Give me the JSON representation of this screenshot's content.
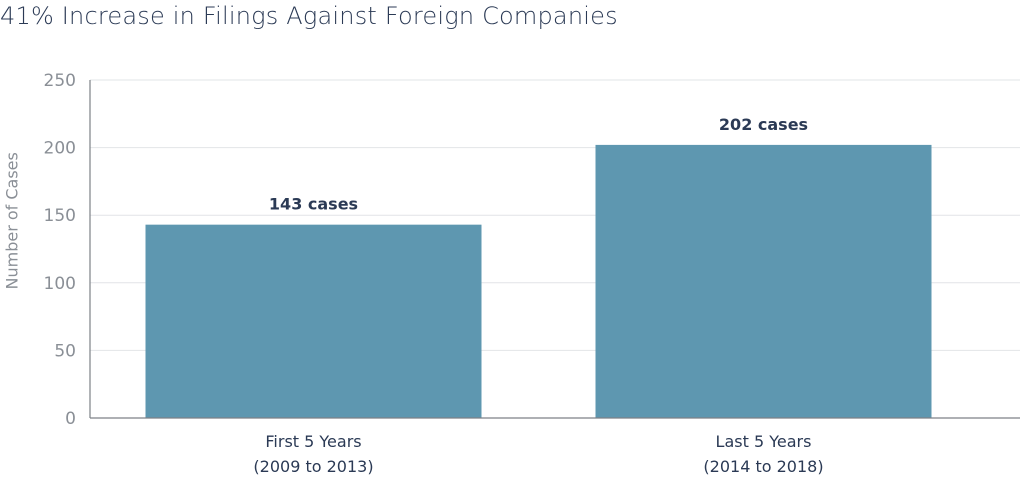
{
  "chart_data": {
    "type": "bar",
    "title": "41% Increase in Filings Against Foreign Companies",
    "ylabel": "Number of Cases",
    "xlabel": "",
    "ylim": [
      0,
      250
    ],
    "yticks": [
      0,
      50,
      100,
      150,
      200,
      250
    ],
    "categories": [
      [
        "First 5 Years",
        "(2009 to 2013)"
      ],
      [
        "Last 5 Years",
        "(2014 to 2018)"
      ]
    ],
    "values": [
      143,
      202
    ],
    "data_labels": [
      "143 cases",
      "202 cases"
    ],
    "grid": true,
    "colors": {
      "bar": "#5e97b0",
      "grid": "#e2e4e7",
      "axis": "#7d8187",
      "text": "#2b3a55",
      "tick": "#8a8f96"
    }
  }
}
